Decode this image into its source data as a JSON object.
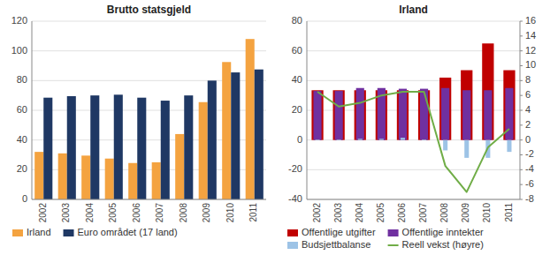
{
  "chart_data": [
    {
      "type": "bar",
      "title": "Brutto statsgjeld",
      "categories": [
        "2002",
        "2003",
        "2004",
        "2005",
        "2006",
        "2007",
        "2008",
        "2009",
        "2010",
        "2011"
      ],
      "series": [
        {
          "name": "Irland",
          "color": "#F4A340",
          "values": [
            32,
            31,
            29.5,
            27.5,
            24.5,
            25,
            44,
            65.5,
            92.5,
            108
          ]
        },
        {
          "name": "Euro området (17 land)",
          "color": "#1F3864",
          "values": [
            68.5,
            69.5,
            70,
            70.5,
            68.5,
            66.5,
            70,
            80,
            85.5,
            87.5
          ]
        }
      ],
      "ylim": [
        0,
        120
      ],
      "yticks": [
        0,
        20,
        40,
        60,
        80,
        100,
        120
      ],
      "grid": true,
      "legend": "bottom"
    },
    {
      "type": "bar",
      "title": "Irland",
      "categories": [
        "2002",
        "2003",
        "2004",
        "2005",
        "2006",
        "2007",
        "2008",
        "2009",
        "2010",
        "2011"
      ],
      "series": [
        {
          "name": "Offentlige utgifter",
          "color": "#C00000",
          "type": "bar",
          "values": [
            33.5,
            33.5,
            33.5,
            33.5,
            33.5,
            33.5,
            42,
            47,
            65,
            47
          ]
        },
        {
          "name": "Offentlige inntekter",
          "color": "#7030A0",
          "type": "bar",
          "values": [
            33,
            33,
            35,
            35,
            34.5,
            34.5,
            35,
            33.5,
            33.5,
            35
          ]
        },
        {
          "name": "Budsjettbalanse",
          "color": "#9DC3E6",
          "type": "bar",
          "values": [
            0.4,
            0.4,
            0.8,
            0.8,
            1.5,
            0.4,
            -7,
            -12,
            -12,
            -8
          ]
        },
        {
          "name": "Reell vekst (høyre)",
          "color": "#70AD47",
          "type": "line",
          "axis": "y2",
          "values": [
            6.5,
            4.5,
            5.0,
            6.0,
            6.5,
            6.5,
            -3.5,
            -7.0,
            -1.0,
            1.5
          ]
        }
      ],
      "ylim": [
        -40,
        80
      ],
      "yticks": [
        -40,
        -20,
        0,
        20,
        40,
        60,
        80
      ],
      "y2lim": [
        -8,
        16
      ],
      "y2ticks": [
        -8,
        -6,
        -4,
        -2,
        0,
        2,
        4,
        6,
        8,
        10,
        12,
        14,
        16
      ],
      "grid": true,
      "legend": "bottom"
    }
  ]
}
